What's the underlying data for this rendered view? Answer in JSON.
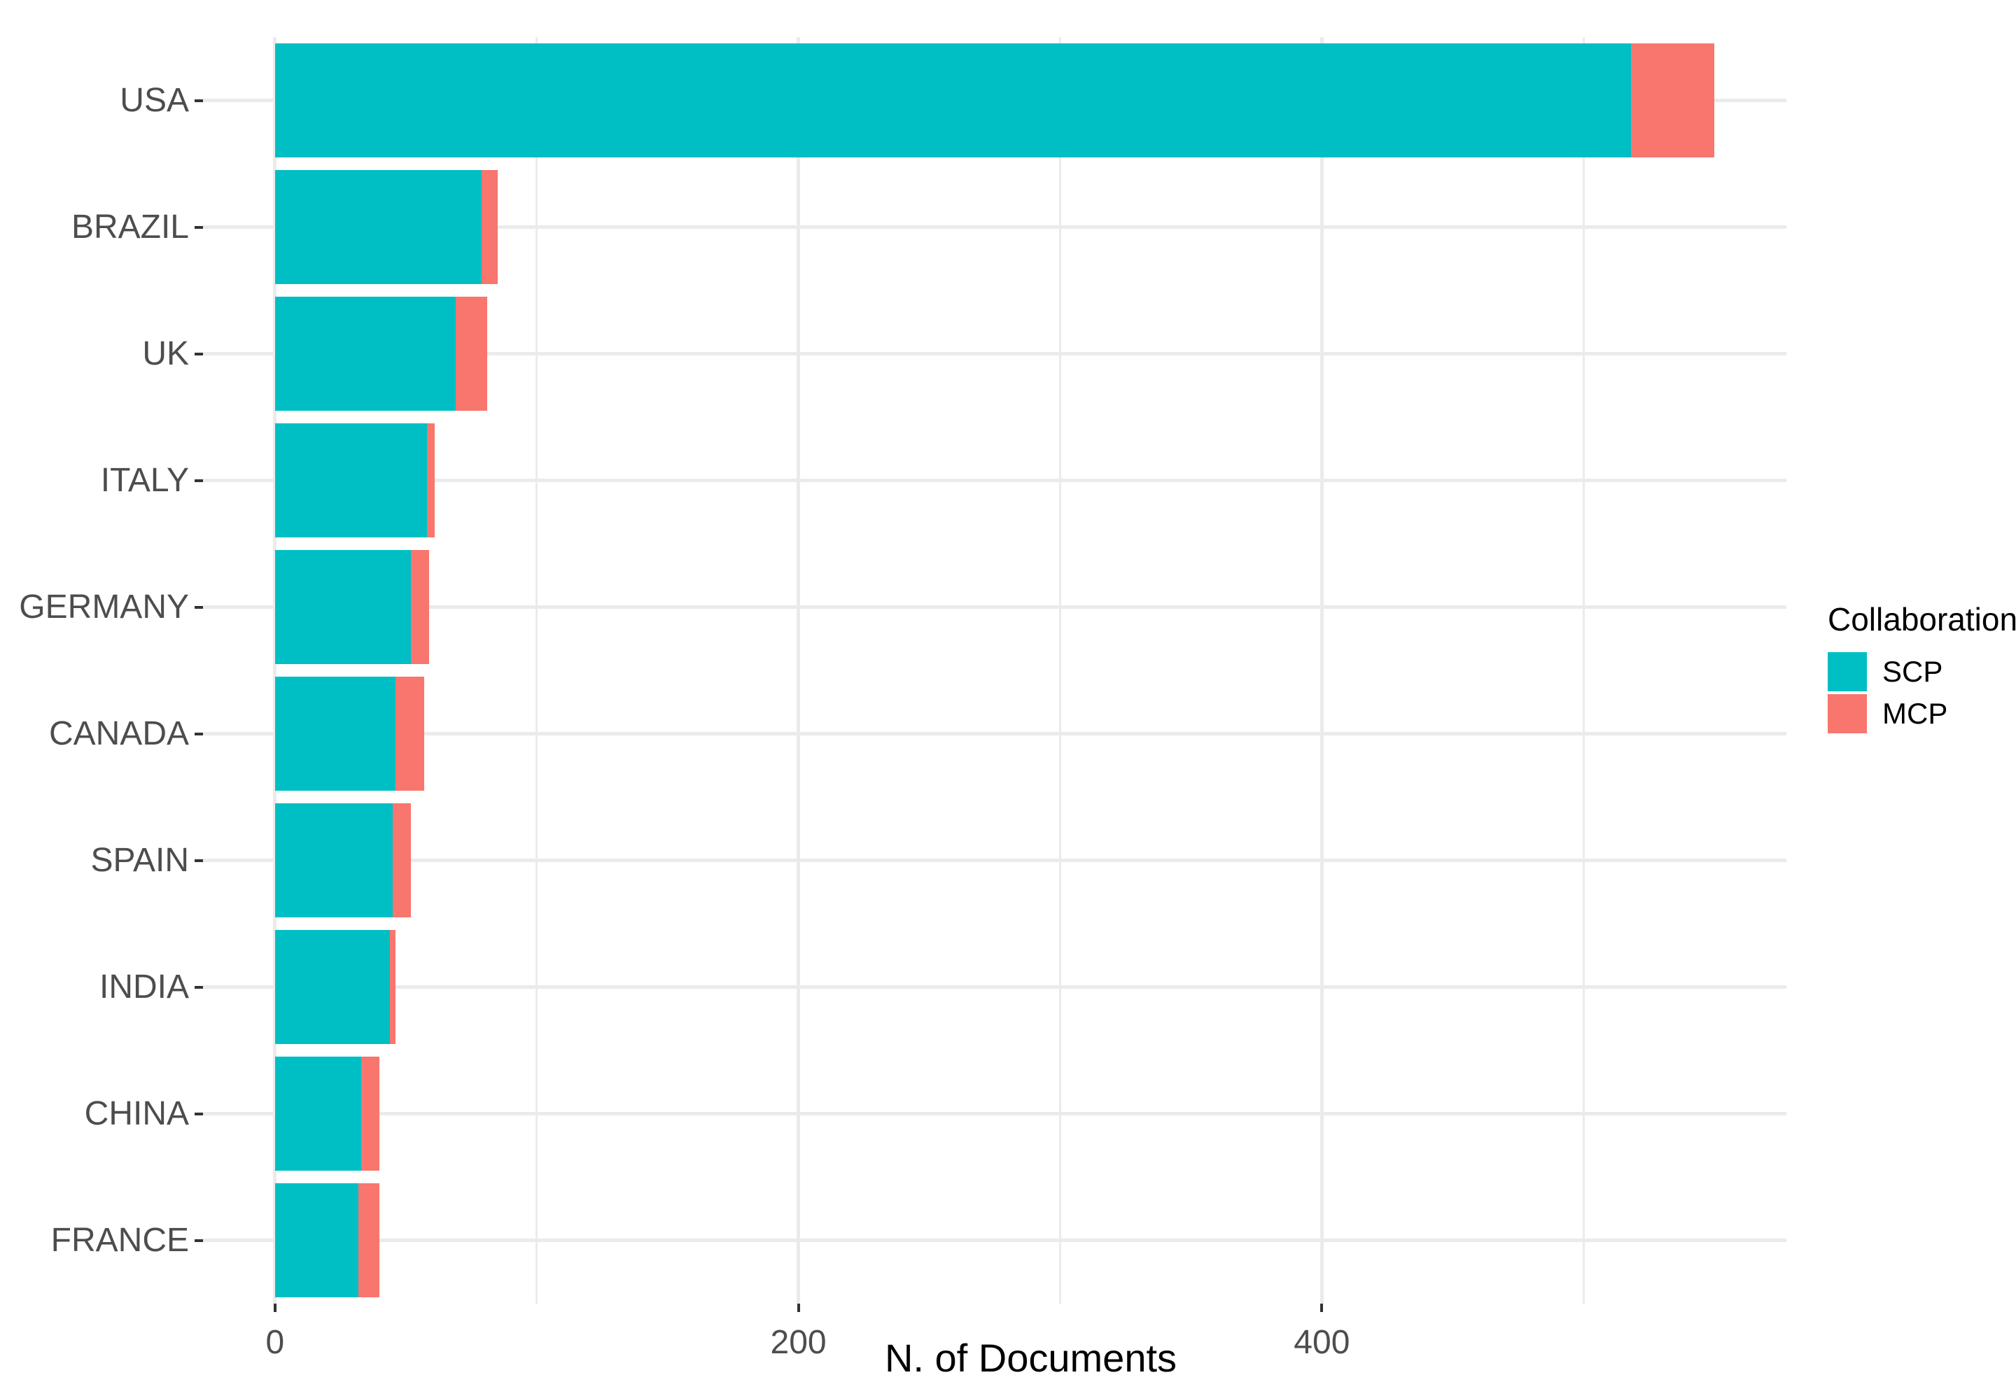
{
  "chart_data": {
    "type": "bar",
    "orientation": "horizontal",
    "stacked": true,
    "title": "",
    "xlabel": "N. of Documents",
    "ylabel": "",
    "categories": [
      "USA",
      "BRAZIL",
      "UK",
      "ITALY",
      "GERMANY",
      "CANADA",
      "SPAIN",
      "INDIA",
      "CHINA",
      "FRANCE"
    ],
    "series": [
      {
        "name": "SCP",
        "color": "#00BFC4",
        "values": [
          518,
          79,
          69,
          58,
          52,
          46,
          45,
          44,
          33,
          32
        ]
      },
      {
        "name": "MCP",
        "color": "#F8766D",
        "values": [
          32,
          6,
          12,
          3,
          7,
          11,
          7,
          2,
          7,
          8
        ]
      }
    ],
    "totals": [
      550,
      85,
      81,
      61,
      59,
      57,
      52,
      46,
      40,
      40
    ],
    "x_axis": {
      "major_ticks": [
        0,
        200,
        400
      ],
      "minor_ticks": [
        100,
        300,
        500
      ],
      "range": [
        -27.5,
        577.5
      ]
    },
    "legend": {
      "title": "Collaboration",
      "position": "right",
      "entries": [
        {
          "label": "SCP",
          "color": "#00BFC4"
        },
        {
          "label": "MCP",
          "color": "#F8766D"
        }
      ]
    },
    "grid": {
      "show": true,
      "color": "#EBEBEB"
    },
    "colors": {
      "axis_text": "#4D4D4D",
      "axis_title": "#000000",
      "tick_mark": "#333333",
      "background": "#FFFFFF"
    }
  }
}
